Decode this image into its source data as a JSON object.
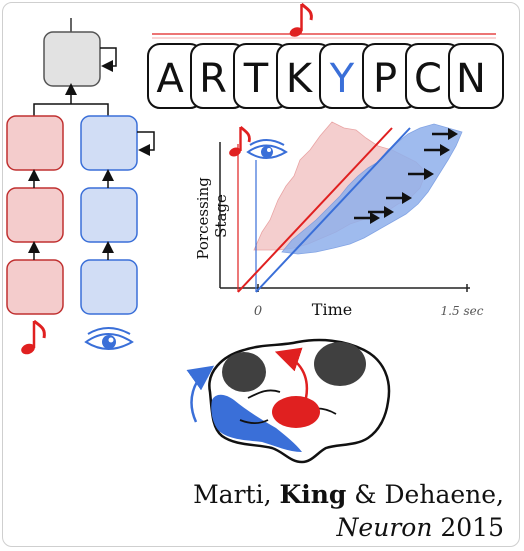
{
  "letters": [
    {
      "char": "A",
      "color": "#111111"
    },
    {
      "char": "R",
      "color": "#111111"
    },
    {
      "char": "T",
      "color": "#111111"
    },
    {
      "char": "K",
      "color": "#111111"
    },
    {
      "char": "Y",
      "color": "#3a6fd8"
    },
    {
      "char": "P",
      "color": "#111111"
    },
    {
      "char": "C",
      "color": "#111111"
    },
    {
      "char": "N",
      "color": "#111111"
    }
  ],
  "plot": {
    "ylabel_line1": "Porcessing",
    "ylabel_line2": "Stage",
    "xlabel": "Time",
    "tick_zero": "0",
    "tick_end": "1.5 sec"
  },
  "citation": {
    "author1": "Marti, ",
    "author2": "King",
    "author3": " & Dehaene,",
    "journal": "Neuron",
    "year": " 2015"
  },
  "colors": {
    "auditory": "#e02020",
    "visual": "#3a6fd8",
    "auditory_fill": "#f4cccc",
    "visual_fill": "#d1ddf5",
    "gray_box": "#e2e2e2",
    "brain_dark": "#404040"
  },
  "icons": [
    "music-note-icon",
    "eye-icon",
    "arrow-icon"
  ]
}
